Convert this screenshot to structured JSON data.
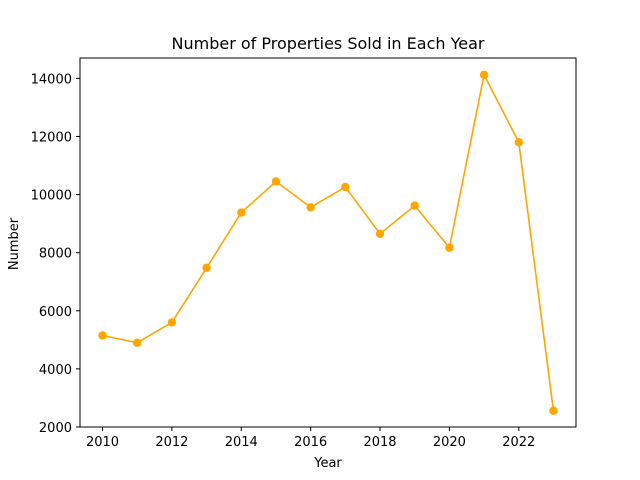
{
  "chart_data": {
    "type": "line",
    "title": "Number of Properties Sold in Each Year",
    "xlabel": "Year",
    "ylabel": "Number",
    "x": [
      2010,
      2011,
      2012,
      2013,
      2014,
      2015,
      2016,
      2017,
      2018,
      2019,
      2020,
      2021,
      2022,
      2023
    ],
    "series": [
      {
        "values": [
          5150,
          4900,
          5600,
          7480,
          9380,
          10450,
          9560,
          10260,
          8650,
          9620,
          8170,
          14120,
          11800,
          2560
        ],
        "color": "#ffa500",
        "marker": "circle"
      }
    ],
    "xlim": [
      2009.35,
      2023.65
    ],
    "ylim": [
      2000,
      14700
    ],
    "xticks": [
      "2010",
      "2012",
      "2014",
      "2016",
      "2018",
      "2020",
      "2022"
    ],
    "yticks": [
      "2000",
      "4000",
      "6000",
      "8000",
      "10000",
      "12000",
      "14000"
    ],
    "grid": false,
    "legend": "none"
  }
}
